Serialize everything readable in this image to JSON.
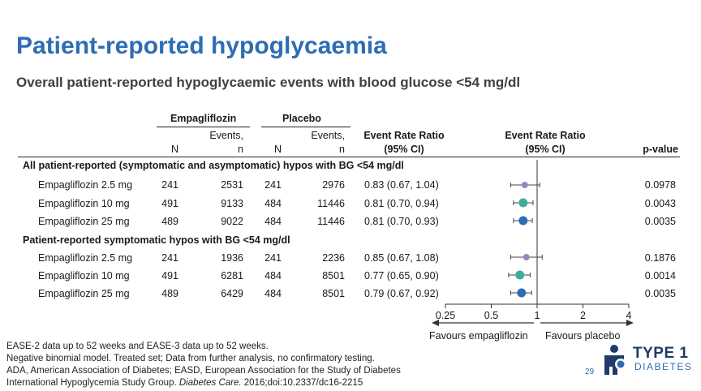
{
  "title": "Patient-reported hypoglycaemia",
  "subtitle": "Overall patient-reported hypoglycaemic events with blood glucose <54 mg/dl",
  "columns": {
    "empa_group": "Empagliflozin",
    "placebo_group": "Placebo",
    "n": "N",
    "events_line1": "Events,",
    "events_line2": "n",
    "err_table_line1": "Event Rate Ratio",
    "err_table_line2": "(95% CI)",
    "err_plot_line1": "Event Rate Ratio",
    "err_plot_line2": "(95% CI)",
    "pvalue": "p-value"
  },
  "sections": [
    {
      "label": "All patient-reported (symptomatic and asymptomatic) hypos with BG <54 mg/dl",
      "rows": [
        {
          "name": "Empagliflozin 2.5 mg",
          "empa_n": "241",
          "empa_events": "2531",
          "pbo_n": "241",
          "pbo_events": "2976",
          "err": "0.83 (0.67, 1.04)",
          "p": "0.0978"
        },
        {
          "name": "Empagliflozin 10 mg",
          "empa_n": "491",
          "empa_events": "9133",
          "pbo_n": "484",
          "pbo_events": "11446",
          "err": "0.81 (0.70, 0.94)",
          "p": "0.0043"
        },
        {
          "name": "Empagliflozin 25 mg",
          "empa_n": "489",
          "empa_events": "9022",
          "pbo_n": "484",
          "pbo_events": "11446",
          "err": "0.81 (0.70, 0.93)",
          "p": "0.0035"
        }
      ]
    },
    {
      "label": "Patient-reported symptomatic hypos with BG <54 mg/dl",
      "rows": [
        {
          "name": "Empagliflozin 2.5 mg",
          "empa_n": "241",
          "empa_events": "1936",
          "pbo_n": "241",
          "pbo_events": "2236",
          "err": "0.85 (0.67, 1.08)",
          "p": "0.1876"
        },
        {
          "name": "Empagliflozin 10 mg",
          "empa_n": "491",
          "empa_events": "6281",
          "pbo_n": "484",
          "pbo_events": "8501",
          "err": "0.77 (0.65, 0.90)",
          "p": "0.0014"
        },
        {
          "name": "Empagliflozin 25 mg",
          "empa_n": "489",
          "empa_events": "6429",
          "pbo_n": "484",
          "pbo_events": "8501",
          "err": "0.79 (0.67, 0.92)",
          "p": "0.0035"
        }
      ]
    }
  ],
  "chart_data": {
    "type": "forest",
    "scale": "log",
    "xlim": [
      0.25,
      4
    ],
    "ticks": [
      0.25,
      0.5,
      1,
      2,
      4
    ],
    "tick_labels": [
      "0.25",
      "0.5",
      "1",
      "2",
      "4"
    ],
    "reference_line": 1,
    "favours_left": "Favours empagliflozin",
    "favours_right": "Favours placebo",
    "points": [
      {
        "section": 0,
        "row": 0,
        "estimate": 0.83,
        "lower": 0.67,
        "upper": 1.04,
        "color": "#9b84c1"
      },
      {
        "section": 0,
        "row": 1,
        "estimate": 0.81,
        "lower": 0.7,
        "upper": 0.94,
        "color": "#3fae98"
      },
      {
        "section": 0,
        "row": 2,
        "estimate": 0.81,
        "lower": 0.7,
        "upper": 0.93,
        "color": "#2e6db4"
      },
      {
        "section": 1,
        "row": 0,
        "estimate": 0.85,
        "lower": 0.67,
        "upper": 1.08,
        "color": "#9b84c1"
      },
      {
        "section": 1,
        "row": 1,
        "estimate": 0.77,
        "lower": 0.65,
        "upper": 0.9,
        "color": "#3fae98"
      },
      {
        "section": 1,
        "row": 2,
        "estimate": 0.79,
        "lower": 0.67,
        "upper": 0.92,
        "color": "#2e6db4"
      }
    ]
  },
  "footnotes": {
    "line1": "EASE-2 data up to 52 weeks and EASE-3 data up to 52 weeks.",
    "line2": "Negative binomial model. Treated set; Data from further analysis, no confirmatory testing.",
    "line3": "ADA, American Association of Diabetes; EASD, European Association for the Study of Diabetes",
    "line4_pre": "International Hypoglycemia Study Group. ",
    "line4_journal": "Diabetes Care.",
    "line4_post": " 2016;doi:10.2337/dc16-2215"
  },
  "page_number": "29",
  "logo": {
    "line1": "TYPE 1",
    "line2": "DIABETES",
    "icon": "diabetes-figure-logo-icon"
  },
  "colors": {
    "accent": "#2e6db4",
    "purple": "#9b84c1",
    "teal": "#3fae98",
    "navy": "#1f3a6b"
  }
}
